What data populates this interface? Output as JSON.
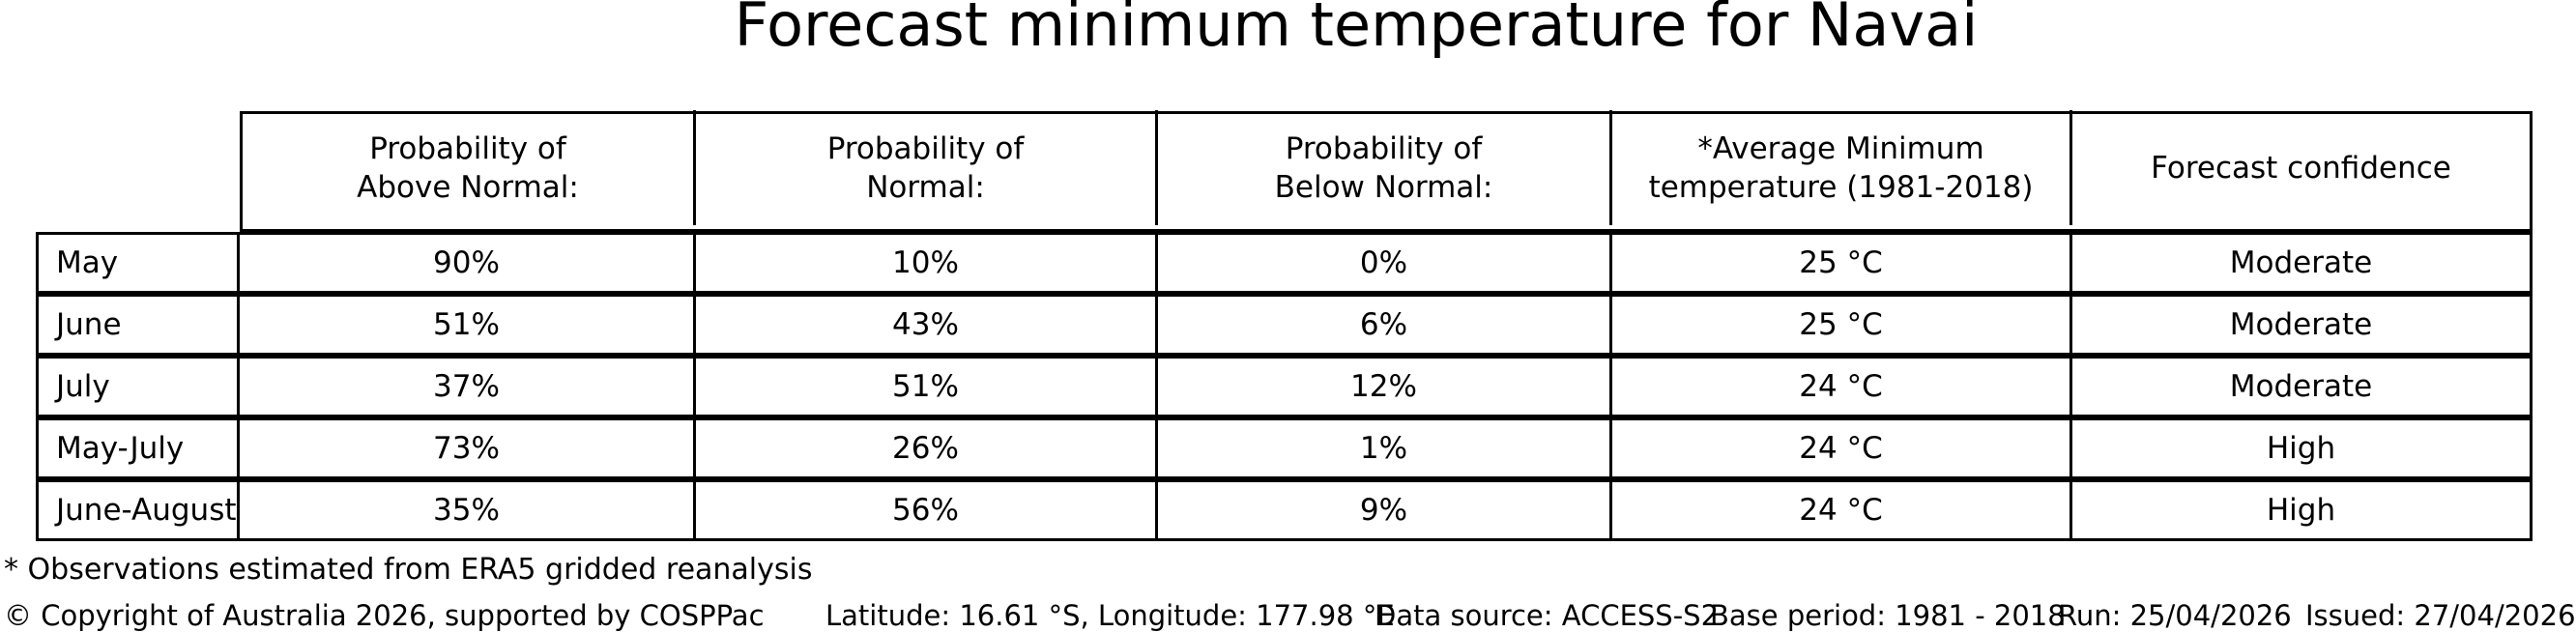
{
  "title": "Forecast minimum temperature for Navai",
  "chart_data": {
    "type": "table",
    "title": "Forecast minimum temperature for Navai",
    "columns": [
      "Probability of\nAbove Normal:",
      "Probability of\nNormal:",
      "Probability of\nBelow Normal:",
      "*Average Minimum\ntemperature (1981-2018)",
      "Forecast confidence"
    ],
    "row_labels": [
      "May",
      "June",
      "July",
      "May-July",
      "June-August"
    ],
    "rows": [
      [
        "May",
        "90%",
        "10%",
        "0%",
        "25 °C",
        "Moderate"
      ],
      [
        "June",
        "51%",
        "43%",
        "6%",
        "25 °C",
        "Moderate"
      ],
      [
        "July",
        "37%",
        "51%",
        "12%",
        "24 °C",
        "Moderate"
      ],
      [
        "May-July",
        "73%",
        "26%",
        "1%",
        "24 °C",
        "High"
      ],
      [
        "June-August",
        "35%",
        "56%",
        "9%",
        "24 °C",
        "High"
      ]
    ],
    "layout": {
      "grid": "full black borders, white background",
      "header_alignment": "center",
      "label_column_alignment": "left",
      "value_alignment": "center"
    }
  },
  "footnote": "* Observations estimated from ERA5 gridded reanalysis",
  "footer": {
    "copyright": "© Copyright of Australia 2026, supported by COSPPac",
    "location": "Latitude: 16.61 °S, Longitude: 177.98 °E",
    "data_source": "Data source: ACCESS-S2",
    "base_period": "Base period: 1981 - 2018",
    "run": "Run: 25/04/2026",
    "issued": "Issued: 27/04/2026"
  },
  "colors": {
    "text": "#000000",
    "background": "#ffffff",
    "border": "#000000"
  }
}
